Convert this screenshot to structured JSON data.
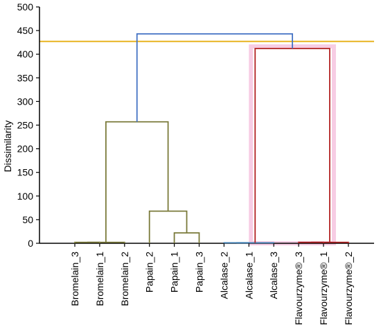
{
  "chart_data": {
    "type": "dendrogram",
    "title": "",
    "xlabel": "",
    "ylabel": "Dissimilarity",
    "ylim": [
      0,
      500
    ],
    "yticks": [
      0,
      50,
      100,
      150,
      200,
      250,
      300,
      350,
      400,
      450,
      500
    ],
    "leaves": [
      "Bromelain_3",
      "Bromelain_1",
      "Bromelain_2",
      "Papain_2",
      "Papain_1",
      "Papain_3",
      "Alcalase_2",
      "Alcalase_1",
      "Alcalase_3",
      "Flavourzyme®_3",
      "Flavourzyme®_1",
      "Flavourzyme®_2"
    ],
    "cut_line": {
      "y": 427,
      "color": "#E8B420"
    },
    "merges": [
      {
        "name": "merge-bromelain-3-1",
        "left": "leaf:0",
        "right": "leaf:1",
        "height": 2,
        "color": "#7A7A3A"
      },
      {
        "name": "merge-bromelain",
        "left": "node:merge-bromelain-3-1",
        "right": "leaf:2",
        "height": 2,
        "color": "#7A7A3A"
      },
      {
        "name": "merge-papain-1-3",
        "left": "leaf:4",
        "right": "leaf:5",
        "height": 22,
        "color": "#7A7A3A"
      },
      {
        "name": "merge-papain",
        "left": "leaf:3",
        "right": "node:merge-papain-1-3",
        "height": 68,
        "color": "#7A7A3A"
      },
      {
        "name": "merge-cluster-green",
        "left": "node:merge-bromelain",
        "right": "node:merge-papain",
        "height": 257,
        "color": "#7A7A3A"
      },
      {
        "name": "merge-alcalase-2-1",
        "left": "leaf:6",
        "right": "leaf:7",
        "height": 1,
        "color": "#4682B4"
      },
      {
        "name": "merge-alcalase",
        "left": "node:merge-alcalase-2-1",
        "right": "leaf:8",
        "height": 1,
        "color": "#4682B4"
      },
      {
        "name": "merge-flavourzyme-3-1",
        "left": "leaf:9",
        "right": "leaf:10",
        "height": 2,
        "color": "#B22222"
      },
      {
        "name": "merge-flavourzyme",
        "left": "node:merge-flavourzyme-3-1",
        "right": "leaf:11",
        "height": 2,
        "color": "#B22222"
      },
      {
        "name": "merge-cluster-red",
        "left": "node:merge-alcalase",
        "right": "node:merge-flavourzyme",
        "height": 412,
        "color": "#B22222"
      },
      {
        "name": "merge-root",
        "left": "node:merge-cluster-green",
        "right": "node:merge-cluster-red",
        "height": 443,
        "color": "#4472C4"
      }
    ],
    "axis_color": "#000000",
    "highlight_color": "#F4B8D8"
  }
}
